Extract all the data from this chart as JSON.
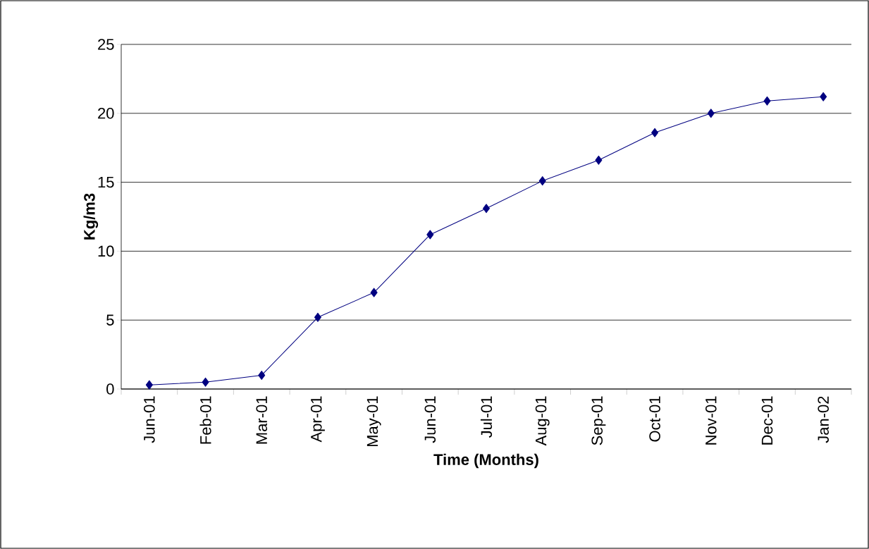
{
  "chart_data": {
    "type": "line",
    "xlabel": "Time  (Months)",
    "ylabel": "Kg/m3",
    "categories": [
      "Jun-01",
      "Feb-01",
      "Mar-01",
      "Apr-01",
      "May-01",
      "Jun-01",
      "Jul-01",
      "Aug-01",
      "Sep-01",
      "Oct-01",
      "Nov-01",
      "Dec-01",
      "Jan-02"
    ],
    "series": [
      {
        "color": "#000080",
        "values": [
          0.3,
          0.5,
          1.0,
          5.2,
          7.0,
          11.2,
          13.1,
          15.1,
          16.6,
          18.6,
          20.0,
          20.9,
          21.2
        ]
      }
    ],
    "ylim": [
      0,
      25
    ],
    "yticks": [
      0,
      5,
      10,
      15,
      20,
      25
    ],
    "grid": "y",
    "marker": "diamond",
    "line_style": "solid"
  }
}
